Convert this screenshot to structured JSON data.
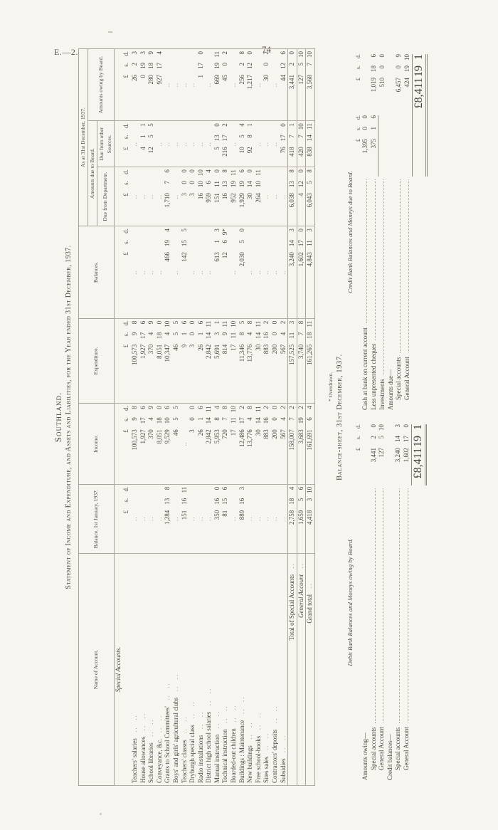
{
  "page": {
    "doc_ref": "E.—2.",
    "page_number": "74"
  },
  "title": {
    "region": "Southland.",
    "statement": "Statement of Income and Expenditure, and Assets and Liabilities, for the Year ended 31st December, 1937."
  },
  "table": {
    "headers": {
      "name": "Name of Account.",
      "balance_jan": "Balance, 1st January, 1937.",
      "income": "Income.",
      "expenditure": "Expenditure.",
      "balances": "Balances.",
      "as_at": "As at 31st December, 1937.",
      "due_group": "Amounts due to Board.",
      "due_dept": "Due from Department.",
      "due_other": "Due from other Sources.",
      "owing": "Amounts owing by Board."
    },
    "money_header": "£ s. d.",
    "section_heading": "Special Accounts.",
    "empty_mark": "..",
    "rows": [
      {
        "name": "Teachers' salaries",
        "values": [
          "",
          "100,573 9 8",
          "100,573 9 8",
          "",
          "",
          "",
          "26 2 3"
        ]
      },
      {
        "name": "House allowances",
        "values": [
          "",
          "1,927 17 6",
          "1,927 17 6",
          "",
          "",
          "4 1 1",
          "0 19 3"
        ]
      },
      {
        "name": "School libraries",
        "values": [
          "",
          "370 4 9",
          "370 4 9",
          "",
          "",
          "12 5 5",
          "280 18 9"
        ]
      },
      {
        "name": "Conveyance, &c.",
        "values": [
          "",
          "8,051 18 0",
          "8,051 18 0",
          "",
          "",
          "",
          "927 17 4"
        ]
      },
      {
        "name": "Grants to School Committees'",
        "values": [
          "1,284 13 8",
          "9,529 10 6",
          "10,347 4 10",
          "466 19 4",
          "1,710 7 6",
          "",
          ""
        ]
      },
      {
        "name": "Boys' and girls' agricultural clubs",
        "values": [
          "",
          "46 5 5",
          "46 5 5",
          "",
          "",
          "",
          ""
        ]
      },
      {
        "name": "Teachers' classes",
        "values": [
          "151 16 11",
          "",
          "9 1 6",
          "142 15 5",
          "3 0 0",
          "",
          ""
        ]
      },
      {
        "name": "Dryburgh special class",
        "values": [
          "",
          "3 0 0",
          "3 0 0",
          "",
          "3 0 0",
          "",
          ""
        ]
      },
      {
        "name": "Radio installations",
        "values": [
          "",
          "26 1 6",
          "26 1 6",
          "",
          "16 10 10",
          "",
          "1 17 0"
        ]
      },
      {
        "name": "District high school salaries",
        "values": [
          "",
          "2,842 14 11",
          "2,842 14 11",
          "",
          "959 6 4",
          "",
          ""
        ]
      },
      {
        "name": "Manual instruction",
        "values": [
          "350 16 0",
          "5,953 8 4",
          "5,691 3 1",
          "613 1 3",
          "151 11 0",
          "5 13 0",
          "669 19 11"
        ]
      },
      {
        "name": "Technical instruction",
        "values": [
          "81 15 6",
          "720 7 8",
          "814 9 11",
          "12 6 9*",
          "16 13 8",
          "216 17 2",
          "45 0 2"
        ]
      },
      {
        "name": "Boarded-out children",
        "values": [
          "",
          "17 11 10",
          "17 11 10",
          "",
          "952 19 11",
          "",
          ""
        ]
      },
      {
        "name": "Buildings : Maintenance",
        "values": [
          "889 16 3",
          "12,486 17 2",
          "11,346 8 5",
          "2,030 5 0",
          "1,929 19 6",
          "10 5 4",
          "256 2 8"
        ]
      },
      {
        "name": "New buildings",
        "values": [
          "",
          "13,776 4 8",
          "13,776 4 8",
          "",
          "30 14 0",
          "92 8 1",
          "1,217 12 0"
        ]
      },
      {
        "name": "Free school-books",
        "values": [
          "",
          "30 14 11",
          "30 14 11",
          "",
          "264 10 11",
          "",
          ""
        ]
      },
      {
        "name": "Sites sales",
        "values": [
          "",
          "883 16 2",
          "883 16 2",
          "",
          "",
          "",
          "30 0 2"
        ]
      },
      {
        "name": "Contractors' deposits",
        "values": [
          "",
          "200 0 0",
          "200 0 0",
          "",
          "",
          "",
          ""
        ]
      },
      {
        "name": "Subsidies",
        "values": [
          "",
          "567 4 2",
          "567 4 2",
          "",
          "",
          "76 17 0",
          "44 12 6"
        ]
      }
    ],
    "total_rows": [
      {
        "name": "Total of Special Accounts",
        "kind": "total",
        "values": [
          "2,758 18 4",
          "158,007 7 2",
          "157,525 11 3",
          "3,240 14 3",
          "6,038 13 8",
          "418 7 1",
          "3,441 2 0"
        ]
      },
      {
        "name": "General Account",
        "kind": "general",
        "values": [
          "1,659 5 6",
          "3,683 19 2",
          "3,740 7 8",
          "1,602 17 0",
          "4 12 0",
          "420 7 10",
          "127 5 10"
        ]
      },
      {
        "name": "Grand total",
        "kind": "grand",
        "values": [
          "4,418 3 10",
          "161,691 6 4",
          "161,265 18 11",
          "4,843 11 3",
          "6,043 5 8",
          "838 14 11",
          "3,568 7 10"
        ]
      }
    ],
    "footnote": "* Overdrawn."
  },
  "balance_sheet": {
    "heading": "Balance-sheet, 31st December, 1937.",
    "debit": {
      "subheading": "Debit Bank Balances and Moneys owing by Board.",
      "money_header": "£ s. d.",
      "lines": [
        {
          "label": "Amounts owing—",
          "indent": 0,
          "dots": false,
          "value": ""
        },
        {
          "label": "Special accounts",
          "indent": 1,
          "dots": true,
          "value": "3,441 2 0"
        },
        {
          "label": "General Account",
          "indent": 1,
          "dots": true,
          "value": "127 5 10"
        },
        {
          "label": "Credit balances—",
          "indent": 0,
          "dots": false,
          "value": ""
        },
        {
          "label": "Special accounts",
          "indent": 1,
          "dots": true,
          "value": "3,240 14 3"
        },
        {
          "label": "General Account",
          "indent": 1,
          "dots": true,
          "value": "1,602 17 0"
        }
      ],
      "total": "£8,411 19 1"
    },
    "credit": {
      "subheading": "Credit Bank Balances and Moneys due to Board.",
      "money_header_1": "£ s. d.",
      "money_header_2": "£ s. d.",
      "lines": [
        {
          "label": "Cash at bank on current account",
          "indent": 0,
          "dots": true,
          "col1": "1,395 0 0",
          "col2": ""
        },
        {
          "label": "Less unpresented cheques",
          "indent": 0,
          "dots": true,
          "col1": "375 1 6",
          "col2": "1,019 18 6",
          "rule1": true
        },
        {
          "label": "Investments",
          "indent": 0,
          "dots": true,
          "col1": "",
          "col2": "510 0 0"
        },
        {
          "label": "Amounts due—",
          "indent": 0,
          "dots": false,
          "col1": "",
          "col2": ""
        },
        {
          "label": "Special accounts",
          "indent": 1,
          "dots": true,
          "col1": "",
          "col2": "6,457 0 9"
        },
        {
          "label": "General Account",
          "indent": 1,
          "dots": true,
          "col1": "",
          "col2": "424 19 10"
        }
      ],
      "total": "£8,411 19 1"
    }
  }
}
